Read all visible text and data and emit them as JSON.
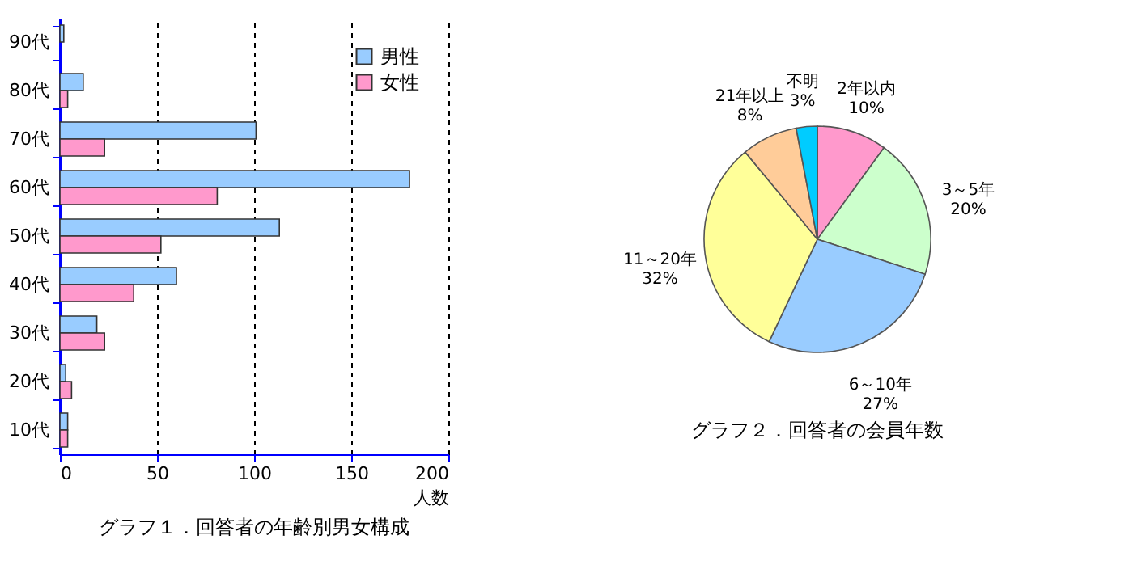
{
  "chart_data": [
    {
      "type": "bar",
      "orientation": "horizontal",
      "title": "グラフ１．回答者の年齢別男女構成",
      "xlabel": "人数",
      "categories": [
        "90代",
        "80代",
        "70代",
        "60代",
        "50代",
        "40代",
        "30代",
        "20代",
        "10代"
      ],
      "series": [
        {
          "name": "男性",
          "color": "#99ccff",
          "values": [
            2,
            12,
            101,
            180,
            113,
            60,
            19,
            3,
            4
          ]
        },
        {
          "name": "女性",
          "color": "#ff99cc",
          "values": [
            null,
            4,
            23,
            81,
            52,
            38,
            23,
            6,
            4
          ]
        }
      ],
      "xlim": [
        0,
        200
      ],
      "xticks": [
        0,
        50,
        100,
        150,
        200
      ],
      "grid": "x",
      "legend": "top right"
    },
    {
      "type": "pie",
      "title": "グラフ２．回答者の会員年数",
      "categories": [
        "2年以内",
        "3～5年",
        "6～10年",
        "11～20年",
        "21年以上",
        "不明"
      ],
      "values": [
        10,
        20,
        27,
        32,
        8,
        3
      ],
      "value_labels": [
        "10%",
        "20%",
        "27%",
        "32%",
        "8%",
        "3%"
      ],
      "colors": [
        "#ff99cc",
        "#ccffcc",
        "#99ccff",
        "#ffff99",
        "#ffcc99",
        "#00ccff"
      ]
    }
  ]
}
